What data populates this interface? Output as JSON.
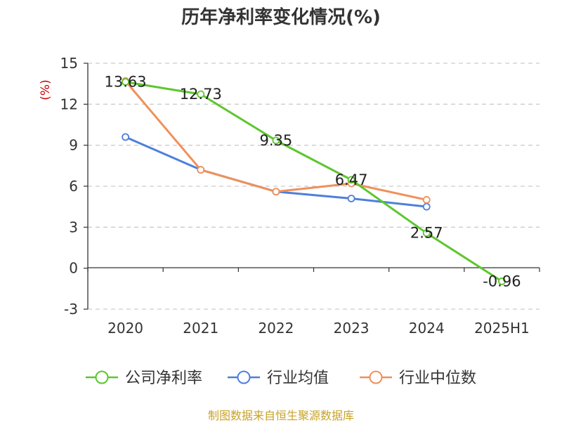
{
  "chart_data": {
    "type": "line",
    "title": "历年净利率变化情况(%)",
    "ylabel": "(%)",
    "categories": [
      "2020",
      "2021",
      "2022",
      "2023",
      "2024",
      "2025H1"
    ],
    "ylim": [
      -3,
      15
    ],
    "yticks": [
      15,
      12,
      9,
      6,
      3,
      0,
      -3
    ],
    "grid": true,
    "legend_position": "bottom",
    "series": [
      {
        "name": "公司净利率",
        "color": "#5cc72e",
        "values": [
          13.63,
          12.73,
          9.35,
          6.47,
          2.57,
          -0.96
        ],
        "labels": [
          "13.63",
          "12.73",
          "9.35",
          "6.47",
          "2.57",
          "-0.96"
        ]
      },
      {
        "name": "行业均值",
        "color": "#4e7fdc",
        "values": [
          9.6,
          7.2,
          5.6,
          5.1,
          4.5,
          null
        ]
      },
      {
        "name": "行业中位数",
        "color": "#f0905a",
        "values": [
          13.7,
          7.2,
          5.6,
          6.2,
          5.0,
          null
        ]
      }
    ]
  },
  "source": "制图数据来自恒生聚源数据库"
}
